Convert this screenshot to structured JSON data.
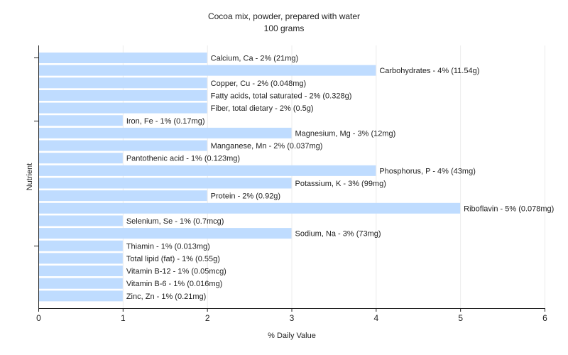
{
  "chart_data": {
    "type": "bar",
    "orientation": "horizontal",
    "title": "Cocoa mix, powder, prepared with water",
    "subtitle": "100 grams",
    "xlabel": "% Daily Value",
    "ylabel": "Nutrient",
    "xlim": [
      0,
      6
    ],
    "xticks": [
      "0",
      "1",
      "2",
      "3",
      "4",
      "5",
      "6"
    ],
    "grid": "vertical",
    "bar_color": "#bfdcff",
    "categories": [
      "Calcium, Ca",
      "Carbohydrates",
      "Copper, Cu",
      "Fatty acids, total saturated",
      "Fiber, total dietary",
      "Iron, Fe",
      "Magnesium, Mg",
      "Manganese, Mn",
      "Pantothenic acid",
      "Phosphorus, P",
      "Potassium, K",
      "Protein",
      "Riboflavin",
      "Selenium, Se",
      "Sodium, Na",
      "Thiamin",
      "Total lipid (fat)",
      "Vitamin B-12",
      "Vitamin B-6",
      "Zinc, Zn"
    ],
    "values": [
      2,
      4,
      2,
      2,
      2,
      1,
      3,
      2,
      1,
      4,
      3,
      2,
      5,
      1,
      3,
      1,
      1,
      1,
      1,
      1
    ],
    "labels": [
      "Calcium, Ca - 2% (21mg)",
      "Carbohydrates - 4% (11.54g)",
      "Copper, Cu - 2% (0.048mg)",
      "Fatty acids, total saturated - 2% (0.328g)",
      "Fiber, total dietary - 2% (0.5g)",
      "Iron, Fe - 1% (0.17mg)",
      "Magnesium, Mg - 3% (12mg)",
      "Manganese, Mn - 2% (0.037mg)",
      "Pantothenic acid - 1% (0.123mg)",
      "Phosphorus, P - 4% (43mg)",
      "Potassium, K - 3% (99mg)",
      "Protein - 2% (0.92g)",
      "Riboflavin - 5% (0.078mg)",
      "Selenium, Se - 1% (0.7mcg)",
      "Sodium, Na - 3% (73mg)",
      "Thiamin - 1% (0.013mg)",
      "Total lipid (fat) - 1% (0.55g)",
      "Vitamin B-12 - 1% (0.05mcg)",
      "Vitamin B-6 - 1% (0.016mg)",
      "Zinc, Zn - 1% (0.21mg)"
    ]
  }
}
